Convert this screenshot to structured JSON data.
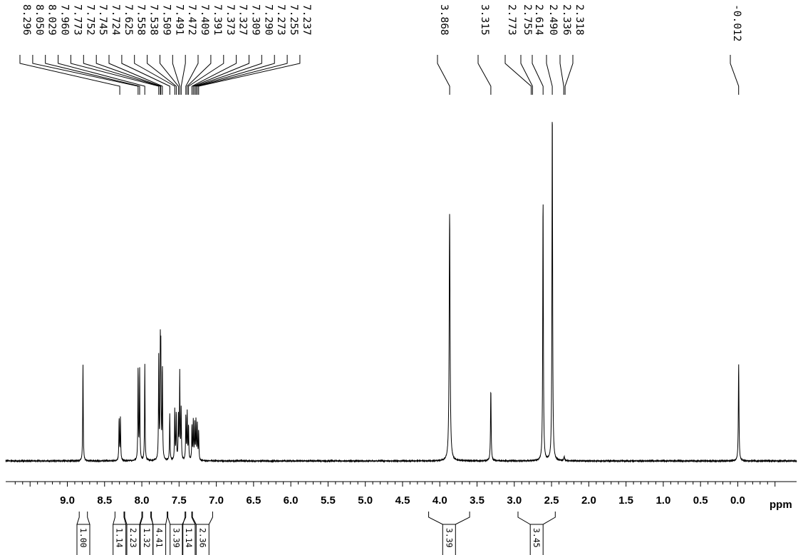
{
  "chart_data": {
    "type": "line",
    "xlabel": "ppm",
    "xlim": [
      9.7,
      -0.57
    ],
    "x_reversed": true,
    "x_ticks": [
      "9.0",
      "8.5",
      "8.0",
      "7.5",
      "7.0",
      "6.5",
      "6.0",
      "5.5",
      "5.0",
      "4.5",
      "4.0",
      "3.5",
      "3.0",
      "2.5",
      "2.0",
      "1.5",
      "1.0",
      "0.5",
      "0.0"
    ],
    "grid": false,
    "peak_labels": [
      "8.296",
      "8.050",
      "8.029",
      "7.960",
      "7.773",
      "7.752",
      "7.745",
      "7.724",
      "7.625",
      "7.558",
      "7.538",
      "7.509",
      "7.491",
      "7.472",
      "7.409",
      "7.391",
      "7.373",
      "7.327",
      "7.309",
      "7.290",
      "7.273",
      "7.255",
      "7.237",
      "3.868",
      "3.315",
      "2.773",
      "2.755",
      "2.614",
      "2.490",
      "2.336",
      "2.318",
      "-0.012"
    ],
    "integrals": [
      {
        "value": "1.00",
        "from": 8.84,
        "to": 8.73
      },
      {
        "value": "1.14",
        "from": 8.36,
        "to": 8.24
      },
      {
        "value": "2.23",
        "from": 8.23,
        "to": 8.0
      },
      {
        "value": "1.32",
        "from": 7.99,
        "to": 7.88
      },
      {
        "value": "4.41",
        "from": 7.87,
        "to": 7.66
      },
      {
        "value": "3.39",
        "from": 7.65,
        "to": 7.42
      },
      {
        "value": "1.14",
        "from": 7.41,
        "to": 7.33
      },
      {
        "value": "2.36",
        "from": 7.32,
        "to": 7.05
      },
      {
        "value": "3.39",
        "from": 4.15,
        "to": 3.6
      },
      {
        "value": "3.45",
        "from": 2.95,
        "to": 2.45
      }
    ],
    "series": [
      {
        "peaks": [
          {
            "ppm": 8.79,
            "height": 0.272,
            "width": 0.004
          },
          {
            "ppm": 8.305,
            "height": 0.118,
            "width": 0.004
          },
          {
            "ppm": 8.287,
            "height": 0.118,
            "width": 0.004
          },
          {
            "ppm": 8.05,
            "height": 0.258,
            "width": 0.004
          },
          {
            "ppm": 8.029,
            "height": 0.25,
            "width": 0.004
          },
          {
            "ppm": 7.96,
            "height": 0.268,
            "width": 0.004
          },
          {
            "ppm": 7.773,
            "height": 0.285,
            "width": 0.004
          },
          {
            "ppm": 7.752,
            "height": 0.28,
            "width": 0.004
          },
          {
            "ppm": 7.745,
            "height": 0.272,
            "width": 0.004
          },
          {
            "ppm": 7.724,
            "height": 0.258,
            "width": 0.004
          },
          {
            "ppm": 7.625,
            "height": 0.13,
            "width": 0.004
          },
          {
            "ppm": 7.558,
            "height": 0.14,
            "width": 0.004
          },
          {
            "ppm": 7.538,
            "height": 0.132,
            "width": 0.004
          },
          {
            "ppm": 7.509,
            "height": 0.128,
            "width": 0.004
          },
          {
            "ppm": 7.491,
            "height": 0.24,
            "width": 0.004
          },
          {
            "ppm": 7.472,
            "height": 0.14,
            "width": 0.004
          },
          {
            "ppm": 7.409,
            "height": 0.125,
            "width": 0.004
          },
          {
            "ppm": 7.391,
            "height": 0.13,
            "width": 0.004
          },
          {
            "ppm": 7.373,
            "height": 0.095,
            "width": 0.004
          },
          {
            "ppm": 7.327,
            "height": 0.095,
            "width": 0.004
          },
          {
            "ppm": 7.309,
            "height": 0.11,
            "width": 0.004
          },
          {
            "ppm": 7.29,
            "height": 0.1,
            "width": 0.004
          },
          {
            "ppm": 7.273,
            "height": 0.11,
            "width": 0.004
          },
          {
            "ppm": 7.255,
            "height": 0.1,
            "width": 0.004
          },
          {
            "ppm": 7.237,
            "height": 0.08,
            "width": 0.004
          },
          {
            "ppm": 3.868,
            "height": 0.69,
            "width": 0.007
          },
          {
            "ppm": 3.315,
            "height": 0.2,
            "width": 0.005
          },
          {
            "ppm": 2.614,
            "height": 0.735,
            "width": 0.005
          },
          {
            "ppm": 2.49,
            "height": 0.99,
            "width": 0.005
          },
          {
            "ppm": 2.33,
            "height": 0.012,
            "width": 0.006
          },
          {
            "ppm": -0.012,
            "height": 0.27,
            "width": 0.005
          }
        ]
      }
    ]
  }
}
